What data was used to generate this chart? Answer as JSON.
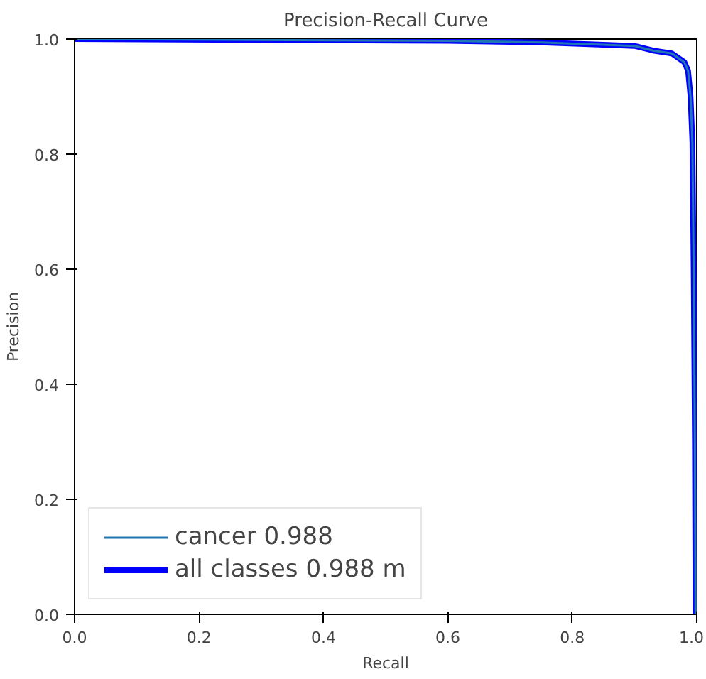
{
  "chart_data": {
    "type": "line",
    "title": "Precision-Recall Curve",
    "xlabel": "Recall",
    "ylabel": "Precision",
    "xlim": [
      0,
      1
    ],
    "ylim": [
      0,
      1
    ],
    "xticks": [
      {
        "value": 0,
        "label": "0.0"
      },
      0.2,
      0.4,
      0.6,
      0.8,
      {
        "value": 1,
        "label": "1.0"
      }
    ],
    "yticks": [
      {
        "value": 0,
        "label": "0.0"
      },
      0.2,
      0.4,
      0.6,
      0.8,
      {
        "value": 1,
        "label": "1.0"
      }
    ],
    "grid": false,
    "legend": "bottom left",
    "marker": "none",
    "line_style": "solid",
    "series": [
      {
        "name": "cancer 0.988",
        "color": "#1f77b4",
        "x": [
          0,
          0.17,
          0.6,
          0.75,
          0.85,
          0.9,
          0.93,
          0.96,
          0.98,
          0.986,
          0.99,
          0.993,
          0.995,
          0.997,
          0.998
        ],
        "values": [
          1,
          0.999,
          0.997,
          0.994,
          0.99,
          0.988,
          0.98,
          0.975,
          0.96,
          0.945,
          0.9,
          0.82,
          0.6,
          0.3,
          0.0
        ]
      },
      {
        "name": "all classes 0.988 m",
        "color": "#0000ff",
        "x": [
          0,
          0.17,
          0.6,
          0.75,
          0.85,
          0.9,
          0.93,
          0.96,
          0.98,
          0.986,
          0.99,
          0.993,
          0.995,
          0.997,
          0.998
        ],
        "values": [
          1,
          0.999,
          0.997,
          0.994,
          0.99,
          0.988,
          0.98,
          0.975,
          0.96,
          0.945,
          0.9,
          0.82,
          0.6,
          0.3,
          0.0
        ]
      }
    ]
  }
}
